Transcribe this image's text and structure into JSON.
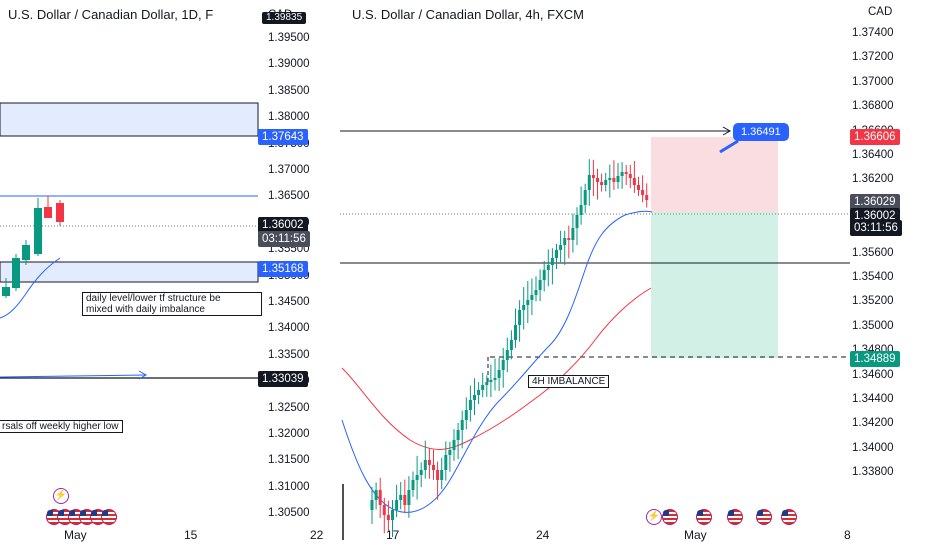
{
  "left_chart": {
    "title": "U.S. Dollar / Canadian Dollar, 1D, F",
    "currency": "CAD",
    "price_ticks": [
      "1.39500",
      "1.39000",
      "1.38500",
      "1.38000",
      "1.37500",
      "1.37000",
      "1.36500",
      "1.36000",
      "1.35500",
      "1.35000",
      "1.34500",
      "1.34000",
      "1.33500",
      "1.33000",
      "1.32500",
      "1.32000",
      "1.31500",
      "1.31000",
      "1.30500"
    ],
    "top_tag": "1.39835",
    "level_high_tag": "1.37643",
    "price_tag": "1.36002",
    "countdown": "03:11:56",
    "level_low_tag": "1.35168",
    "level_bottom_tag": "1.33039",
    "annotation_lines": [
      "daily level/lower tf structure be",
      "mixed with daily imbalance"
    ],
    "annotation_2": "rsals off weekly higher low",
    "x_labels": [
      "May",
      "15",
      "22"
    ]
  },
  "right_chart": {
    "title": "U.S. Dollar / Canadian Dollar, 4h, FXCM",
    "currency": "CAD",
    "price_ticks": [
      "1.37400",
      "1.37200",
      "1.37000",
      "1.36800",
      "1.36600",
      "1.36400",
      "1.36200",
      "1.36000",
      "1.35800",
      "1.35600",
      "1.35400",
      "1.35200",
      "1.35000",
      "1.34800",
      "1.34600",
      "1.34400",
      "1.34200",
      "1.34000",
      "1.33800"
    ],
    "target_tag": "1.36606",
    "entry_tag": "1.36029",
    "price_tag": "1.36002",
    "countdown": "03:11:56",
    "stop_tag": "1.34889",
    "callout": "1.36491",
    "annotation": "4H IMBALANCE",
    "x_labels": [
      "17",
      "24",
      "May",
      "8"
    ]
  },
  "colors": {
    "bull": "#089981",
    "bear": "#f23645",
    "blue_line": "#2962ff",
    "red_line": "#f23645",
    "zone_fill": "#e3ecff"
  }
}
